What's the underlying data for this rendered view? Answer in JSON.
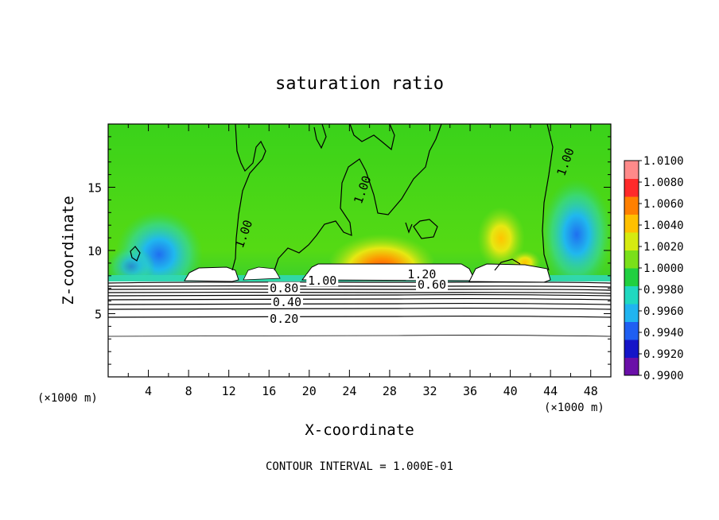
{
  "chart_data": {
    "type": "heatmap",
    "title": "saturation ratio",
    "xlabel": "X-coordinate",
    "ylabel": "Z-coordinate",
    "x_unit_left": "(×1000 m)",
    "x_unit_right": "(×1000 m)",
    "footer": "CONTOUR INTERVAL = 1.000E-01",
    "xlim": [
      0,
      50
    ],
    "ylim": [
      0,
      20
    ],
    "xticks": [
      4,
      8,
      12,
      16,
      20,
      24,
      28,
      32,
      36,
      40,
      44,
      48
    ],
    "yticks": [
      5,
      10,
      15
    ],
    "colorbar": {
      "min": 0.99,
      "max": 1.01,
      "ticks": [
        "1.0100",
        "1.0080",
        "1.0060",
        "1.0040",
        "1.0020",
        "1.0000",
        "0.9980",
        "0.9960",
        "0.9940",
        "0.9920",
        "0.9900"
      ],
      "colors": [
        "#6a0fa8",
        "#1515c8",
        "#1f5ff2",
        "#20b4f0",
        "#20d8c0",
        "#20d040",
        "#7ae01a",
        "#d6ea10",
        "#ffc000",
        "#ff8000",
        "#ff2a2a",
        "#ff8a8a"
      ]
    },
    "contour_labels": [
      {
        "text": "0.20",
        "x": 17.5,
        "z": 4.6
      },
      {
        "text": "0.40",
        "x": 17.8,
        "z": 5.9
      },
      {
        "text": "0.80",
        "x": 17.5,
        "z": 7.0
      },
      {
        "text": "0.60",
        "x": 32.2,
        "z": 7.3
      },
      {
        "text": "1.00",
        "x": 21.3,
        "z": 7.6
      },
      {
        "text": "1.20",
        "x": 31.2,
        "z": 8.1
      },
      {
        "text": "1.00",
        "x": 13.5,
        "z": 11.3
      },
      {
        "text": "1.00",
        "x": 25.3,
        "z": 14.8
      },
      {
        "text": "1.00",
        "x": 45.5,
        "z": 17.0
      }
    ],
    "grid": false
  }
}
